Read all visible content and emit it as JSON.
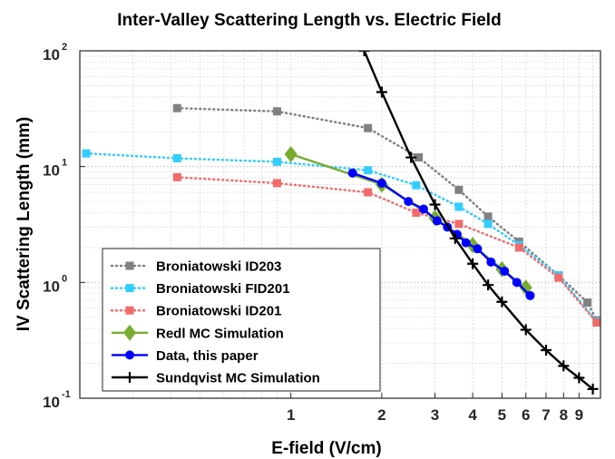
{
  "chart_data": {
    "type": "line",
    "title": "Inter-Valley Scattering Length vs. Electric Field",
    "xlabel": "E-field (V/cm)",
    "ylabel": "IV Scattering Length (mm)",
    "xscale": "log",
    "yscale": "log",
    "xlim": [
      0.2,
      10.6
    ],
    "ylim": [
      0.1,
      100
    ],
    "grid": true,
    "minor_grid": true,
    "legend_position": "bottom-left",
    "x_tick_labels": [
      {
        "value": 1,
        "label": "1"
      },
      {
        "value": 2,
        "label": "2"
      },
      {
        "value": 3,
        "label": "3"
      },
      {
        "value": 4,
        "label": "4"
      },
      {
        "value": 5,
        "label": "5"
      },
      {
        "value": 6,
        "label": "6"
      },
      {
        "value": 7,
        "label": "7"
      },
      {
        "value": 8,
        "label": "8"
      },
      {
        "value": 9,
        "label": "9"
      }
    ],
    "y_tick_labels": [
      {
        "value": 0.1,
        "base": "10",
        "exp": "-1"
      },
      {
        "value": 1,
        "base": "10",
        "exp": "0"
      },
      {
        "value": 10,
        "base": "10",
        "exp": "1"
      },
      {
        "value": 100,
        "base": "10",
        "exp": "2"
      }
    ],
    "series": [
      {
        "name": "Broniatowski ID203",
        "color": "#808080",
        "line": "dotted",
        "marker": "square",
        "x": [
          0.42,
          0.9,
          1.8,
          2.65,
          3.6,
          4.5,
          5.7,
          7.7,
          9.6,
          10.3
        ],
        "y": [
          32,
          30,
          21.5,
          12,
          6.3,
          3.7,
          2.25,
          1.15,
          0.67,
          0.47
        ]
      },
      {
        "name": "Broniatowski FID201",
        "color": "#33ccff",
        "line": "dotted",
        "marker": "square",
        "x": [
          0.21,
          0.42,
          0.9,
          1.8,
          2.6,
          3.6,
          4.5,
          5.7,
          7.7,
          10.3
        ],
        "y": [
          13,
          11.8,
          11,
          9.3,
          6.9,
          4.5,
          3.2,
          2.1,
          1.15,
          0.46
        ]
      },
      {
        "name": "Broniatowski ID201",
        "color": "#f26b6b",
        "line": "dotted",
        "marker": "square",
        "x": [
          0.42,
          0.9,
          1.8,
          2.6,
          3.6,
          5.7,
          7.7,
          10.3
        ],
        "y": [
          8.1,
          7.2,
          6.0,
          4.0,
          3.2,
          2.0,
          1.1,
          0.45
        ]
      },
      {
        "name": "Redl MC Simulation",
        "color": "#77ac30",
        "line": "solid",
        "marker": "diamond",
        "x": [
          1.0,
          2.0,
          3.0,
          4.0,
          5.0,
          6.0
        ],
        "y": [
          12.8,
          7.0,
          3.6,
          2.1,
          1.3,
          0.9
        ]
      },
      {
        "name": "Data, this paper",
        "color": "#0000ff",
        "line": "solid",
        "marker": "circle",
        "x": [
          1.6,
          2.0,
          2.45,
          2.75,
          3.05,
          3.3,
          3.55,
          3.8,
          4.15,
          4.6,
          5.1,
          5.6,
          6.2
        ],
        "y": [
          8.8,
          7.2,
          5.0,
          4.3,
          3.4,
          3.0,
          2.6,
          2.2,
          1.95,
          1.5,
          1.25,
          1.0,
          0.77
        ]
      },
      {
        "name": "Sundqvist MC Simulation",
        "color": "#000000",
        "line": "solid",
        "marker": "plus",
        "x": [
          1.75,
          2.0,
          2.5,
          3.0,
          3.5,
          4.0,
          4.5,
          5.0,
          6.0,
          7.0,
          8.0,
          9.0,
          10.0
        ],
        "y": [
          100,
          44,
          12,
          4.7,
          2.4,
          1.45,
          0.95,
          0.68,
          0.39,
          0.26,
          0.19,
          0.15,
          0.12
        ]
      }
    ]
  }
}
